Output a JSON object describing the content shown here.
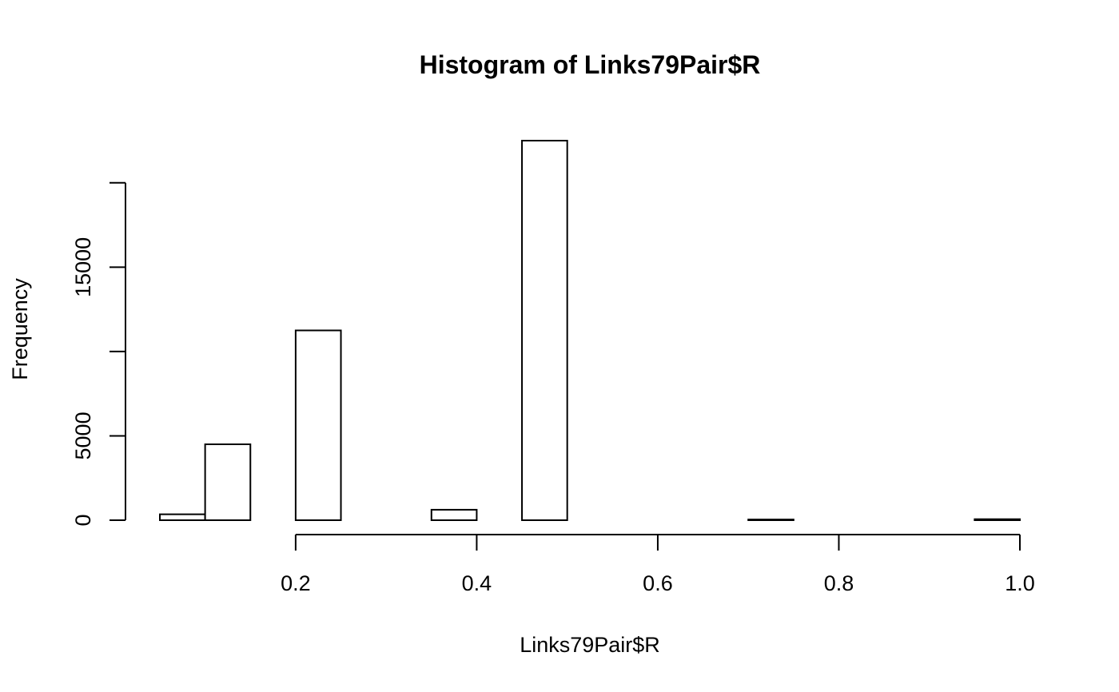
{
  "chart_data": {
    "type": "bar",
    "title": "Histogram of Links79Pair$R",
    "xlabel": "Links79Pair$R",
    "ylabel": "Frequency",
    "bin_edges": [
      0.05,
      0.1,
      0.15,
      0.2,
      0.25,
      0.3,
      0.35,
      0.4,
      0.45,
      0.5,
      0.55,
      0.6,
      0.65,
      0.7,
      0.75,
      0.8,
      0.85,
      0.9,
      0.95,
      1.0
    ],
    "values": [
      350,
      4500,
      0,
      11250,
      0,
      0,
      620,
      0,
      22500,
      0,
      0,
      0,
      0,
      40,
      0,
      0,
      0,
      0,
      60
    ],
    "xlim": [
      0.05,
      1.0
    ],
    "ylim": [
      0,
      22500
    ],
    "x_ticks": [
      0.2,
      0.4,
      0.6,
      0.8,
      1.0
    ],
    "x_tick_labels": [
      "0.2",
      "0.4",
      "0.6",
      "0.8",
      "1.0"
    ],
    "y_ticks": [
      0,
      5000,
      10000,
      15000,
      20000
    ],
    "y_tick_labels": [
      "0",
      "5000",
      "",
      "15000",
      ""
    ],
    "grid": false,
    "legend": "none"
  }
}
